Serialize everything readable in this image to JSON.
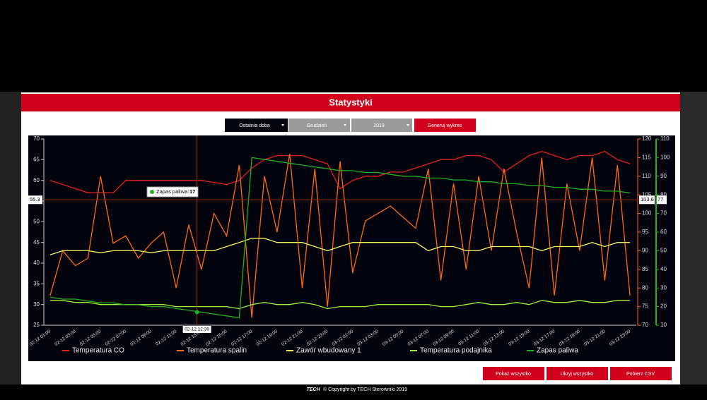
{
  "header": {
    "title": "Statystyki"
  },
  "controls": {
    "period": "Ostatnia doba",
    "month": "Grudzień",
    "year": "2019",
    "generate": "Generuj wykres"
  },
  "buttons": [
    "Pokaż wszystko",
    "Ukryj wszystko",
    "Pobierz CSV"
  ],
  "footer": {
    "logo": "TECH",
    "text": "© Copyright by TECH Sterowniki 2019"
  },
  "chart_data": {
    "type": "line",
    "categories": [
      "02-12 01:00",
      null,
      "02-12 03:00",
      null,
      "02-12 05:00",
      null,
      "02-12 07:00",
      null,
      "02-12 09:00",
      null,
      "02-12 11:00",
      null,
      "02-12 13:00",
      null,
      "02-12 15:00",
      null,
      "02-12 17:00",
      null,
      "02-12 19:00",
      null,
      "02-12 21:00",
      null,
      "02-12 23:00",
      null,
      "03-12 01:00",
      null,
      "03-12 03:00",
      null,
      "03-12 05:00",
      null,
      "03-12 07:00",
      null,
      "03-12 09:00",
      null,
      "03-12 11:00",
      null,
      "03-12 13:00",
      null,
      "03-12 15:00",
      null,
      "03-12 17:00",
      null,
      "03-12 19:00",
      null,
      "03-12 21:00",
      null,
      "03-12 23:00"
    ],
    "ylim": [
      25,
      70
    ],
    "yticks": [
      25,
      30,
      35,
      40,
      45,
      50,
      55,
      60,
      65,
      70
    ],
    "y2lim": [
      70,
      120
    ],
    "y2ticks": [
      70,
      75,
      80,
      85,
      90,
      95,
      100,
      105,
      110,
      115,
      120
    ],
    "y3lim": [
      10,
      110
    ],
    "y3ticks": [
      10,
      20,
      30,
      40,
      50,
      60,
      70,
      80,
      90,
      100,
      110
    ],
    "grid": false,
    "series": [
      {
        "name": "Temperatura CO",
        "color": "#e3201c",
        "values": [
          60,
          59,
          58,
          57,
          57,
          57,
          60,
          60,
          60,
          60,
          60,
          60,
          60,
          59.5,
          59,
          60,
          63,
          65,
          66,
          66,
          66,
          65,
          64,
          58,
          60,
          61,
          61,
          62,
          62,
          63,
          64,
          65,
          65,
          66,
          66,
          65,
          62,
          64,
          66,
          67,
          66,
          65,
          66,
          66,
          67,
          65,
          64
        ]
      },
      {
        "name": "Temperatura spalin",
        "color": "#ff6a13",
        "axis": "y2",
        "values": [
          78,
          90,
          86,
          88,
          110,
          92,
          94,
          88,
          92,
          95,
          80,
          97,
          85,
          100,
          94,
          113,
          72,
          110,
          95,
          116,
          80,
          112,
          75,
          114,
          84,
          98,
          100,
          102,
          99,
          96,
          112,
          82,
          108,
          85,
          110,
          90,
          112,
          95,
          80,
          115,
          78,
          108,
          90,
          115,
          82,
          113,
          78
        ]
      },
      {
        "name": "Zawór wbudowany 1",
        "color": "#f4f45a",
        "values": [
          42,
          43,
          43,
          43,
          42.5,
          43,
          43,
          43,
          42.5,
          43,
          43,
          43,
          43,
          43,
          44,
          45,
          46,
          46,
          45,
          45,
          45,
          44,
          43,
          44,
          45,
          45,
          45,
          45,
          45,
          45,
          43,
          44,
          44,
          43,
          43,
          44,
          44,
          44,
          44,
          43,
          44,
          44,
          44,
          45,
          44,
          45,
          45
        ]
      },
      {
        "name": "Temperatura podajnika",
        "color": "#9ef03a",
        "values": [
          31,
          31,
          30.5,
          30.5,
          30,
          30,
          30,
          30,
          30,
          30,
          29.5,
          29.5,
          29.5,
          29.5,
          29.5,
          29,
          30,
          30.5,
          30,
          30,
          30.5,
          30,
          29,
          29.5,
          29.5,
          29.5,
          30,
          30,
          30,
          30,
          30,
          29.5,
          29.5,
          30,
          30.5,
          30,
          30,
          30.5,
          30,
          31,
          30.5,
          30.5,
          31,
          30.5,
          30.5,
          31,
          31
        ]
      },
      {
        "name": "Zapas paliwa",
        "color": "#22b022",
        "axis": "y3",
        "values": [
          25,
          24,
          24,
          23,
          22,
          22,
          21,
          21,
          20,
          20,
          19,
          18,
          17,
          16,
          15,
          14,
          100,
          99,
          98,
          97,
          96,
          95,
          94,
          93,
          93,
          92,
          92,
          91,
          90,
          90,
          89,
          89,
          88,
          88,
          87,
          87,
          86,
          86,
          85,
          85,
          84,
          84,
          83,
          83,
          82,
          82,
          81
        ]
      }
    ],
    "crosshair": {
      "x_label": "02-12 12:39",
      "y": 55.3,
      "y2": 103.6,
      "y3": 77
    },
    "tooltip": {
      "label": "Zapas paliwa:",
      "value": 17
    }
  }
}
